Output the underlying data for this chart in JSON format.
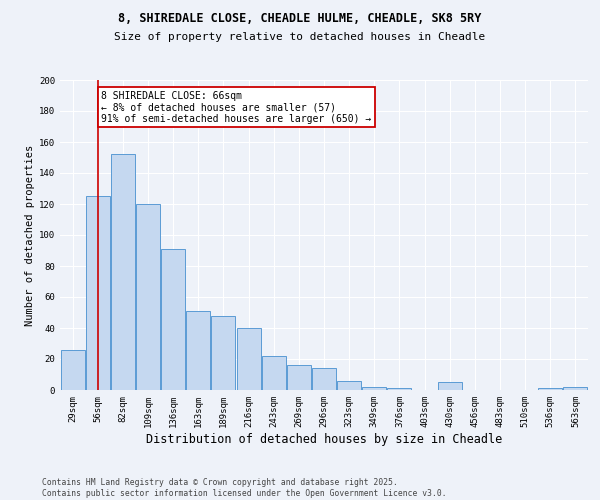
{
  "title1": "8, SHIREDALE CLOSE, CHEADLE HULME, CHEADLE, SK8 5RY",
  "title2": "Size of property relative to detached houses in Cheadle",
  "xlabel": "Distribution of detached houses by size in Cheadle",
  "ylabel": "Number of detached properties",
  "categories": [
    "29sqm",
    "56sqm",
    "82sqm",
    "109sqm",
    "136sqm",
    "163sqm",
    "189sqm",
    "216sqm",
    "243sqm",
    "269sqm",
    "296sqm",
    "323sqm",
    "349sqm",
    "376sqm",
    "403sqm",
    "430sqm",
    "456sqm",
    "483sqm",
    "510sqm",
    "536sqm",
    "563sqm"
  ],
  "values": [
    26,
    125,
    152,
    120,
    91,
    51,
    48,
    40,
    22,
    16,
    14,
    6,
    2,
    1,
    0,
    5,
    0,
    0,
    0,
    1,
    2
  ],
  "bar_color": "#c5d8f0",
  "bar_edge_color": "#5b9bd5",
  "vline_x": 1,
  "vline_color": "#cc0000",
  "annotation_text": "8 SHIREDALE CLOSE: 66sqm\n← 8% of detached houses are smaller (57)\n91% of semi-detached houses are larger (650) →",
  "annotation_box_color": "#ffffff",
  "annotation_box_edge_color": "#cc0000",
  "background_color": "#eef2f9",
  "grid_color": "#ffffff",
  "footer": "Contains HM Land Registry data © Crown copyright and database right 2025.\nContains public sector information licensed under the Open Government Licence v3.0.",
  "ylim": [
    0,
    200
  ],
  "yticks": [
    0,
    20,
    40,
    60,
    80,
    100,
    120,
    140,
    160,
    180,
    200
  ],
  "title1_fontsize": 8.5,
  "title2_fontsize": 8.0,
  "xlabel_fontsize": 8.5,
  "ylabel_fontsize": 7.5,
  "tick_fontsize": 6.5,
  "footer_fontsize": 5.8,
  "ann_fontsize": 7.0
}
